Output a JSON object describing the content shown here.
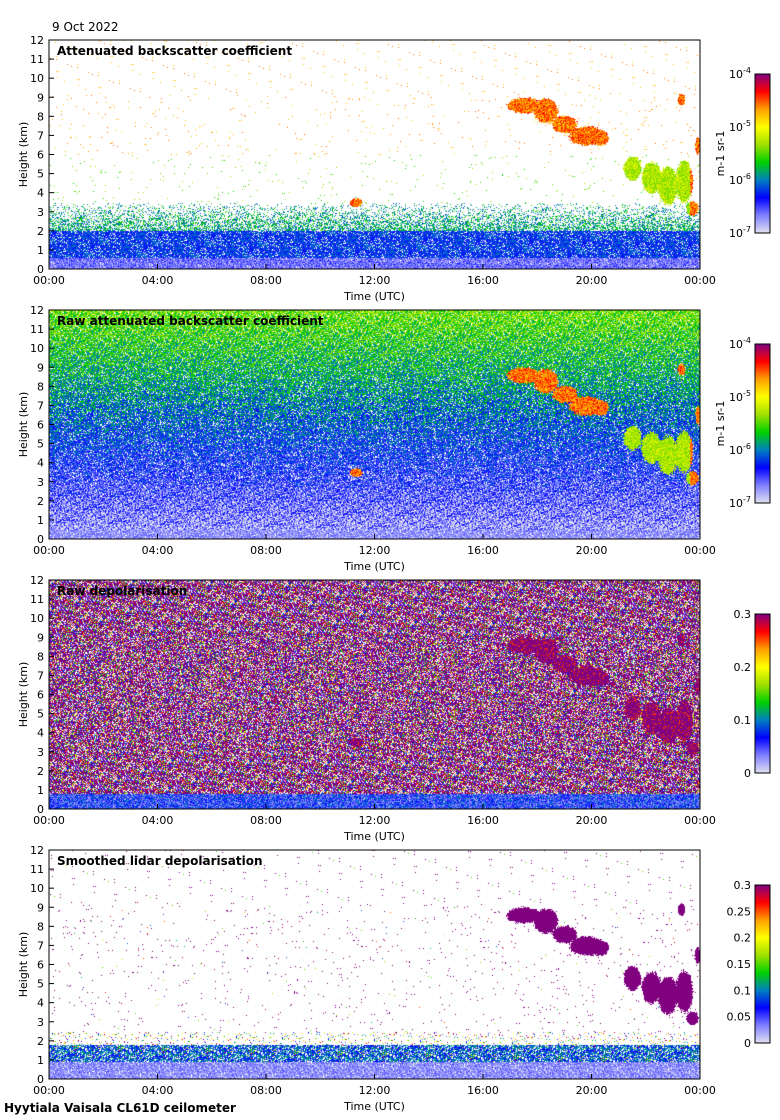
{
  "date": "9 Oct 2022",
  "footer": "Hyytiala Vaisala CL61D ceilometer",
  "chart_data": [
    {
      "type": "heatmap",
      "title": "Attenuated backscatter coefficient",
      "xlabel": "Time (UTC)",
      "ylabel": "Height (km)",
      "xticks": [
        "00:00",
        "04:00",
        "08:00",
        "12:00",
        "16:00",
        "20:00",
        "00:00"
      ],
      "yticks": [
        "0",
        "1",
        "2",
        "3",
        "4",
        "5",
        "6",
        "7",
        "8",
        "9",
        "10",
        "11",
        "12"
      ],
      "xlim": [
        0,
        24
      ],
      "ylim": [
        0,
        12
      ],
      "colorbar": {
        "scale": "log",
        "ticks": [
          "10-7",
          "10-6",
          "10-5",
          "10-4"
        ],
        "tick_base": "10",
        "tick_exp": [
          "-7",
          "-6",
          "-5",
          "-4"
        ],
        "label": "m-1 sr-1",
        "label_parts": [
          "m",
          "-1",
          " sr",
          "-1"
        ],
        "range": [
          1e-07,
          0.0001
        ]
      },
      "kind": "beta"
    },
    {
      "type": "heatmap",
      "title": "Raw attenuated backscatter coefficient",
      "xlabel": "Time (UTC)",
      "ylabel": "Height (km)",
      "xticks": [
        "00:00",
        "04:00",
        "08:00",
        "12:00",
        "16:00",
        "20:00",
        "00:00"
      ],
      "yticks": [
        "0",
        "1",
        "2",
        "3",
        "4",
        "5",
        "6",
        "7",
        "8",
        "9",
        "10",
        "11",
        "12"
      ],
      "xlim": [
        0,
        24
      ],
      "ylim": [
        0,
        12
      ],
      "colorbar": {
        "scale": "log",
        "ticks": [
          "10-7",
          "10-6",
          "10-5",
          "10-4"
        ],
        "tick_base": "10",
        "tick_exp": [
          "-7",
          "-6",
          "-5",
          "-4"
        ],
        "label": "m-1 sr-1",
        "label_parts": [
          "m",
          "-1",
          " sr",
          "-1"
        ],
        "range": [
          1e-07,
          0.0001
        ]
      },
      "kind": "beta_raw"
    },
    {
      "type": "heatmap",
      "title": "Raw depolarisation",
      "xlabel": "Time (UTC)",
      "ylabel": "Height (km)",
      "xticks": [
        "00:00",
        "04:00",
        "08:00",
        "12:00",
        "16:00",
        "20:00",
        "00:00"
      ],
      "yticks": [
        "0",
        "1",
        "2",
        "3",
        "4",
        "5",
        "6",
        "7",
        "8",
        "9",
        "10",
        "11",
        "12"
      ],
      "xlim": [
        0,
        24
      ],
      "ylim": [
        0,
        12
      ],
      "colorbar": {
        "scale": "linear",
        "ticks": [
          "0",
          "0.1",
          "0.2",
          "0.3"
        ],
        "range": [
          0,
          0.3
        ]
      },
      "kind": "depol_raw"
    },
    {
      "type": "heatmap",
      "title": "Smoothed lidar depolarisation",
      "xlabel": "Time (UTC)",
      "ylabel": "Height (km)",
      "xticks": [
        "00:00",
        "04:00",
        "08:00",
        "12:00",
        "16:00",
        "20:00",
        "00:00"
      ],
      "yticks": [
        "0",
        "1",
        "2",
        "3",
        "4",
        "5",
        "6",
        "7",
        "8",
        "9",
        "10",
        "11",
        "12"
      ],
      "xlim": [
        0,
        24
      ],
      "ylim": [
        0,
        12
      ],
      "colorbar": {
        "scale": "linear",
        "ticks": [
          "0",
          "0.05",
          "0.1",
          "0.15",
          "0.2",
          "0.25",
          "0.3"
        ],
        "range": [
          0,
          0.3
        ]
      },
      "kind": "depol"
    }
  ],
  "cloud_features_hours_km": [
    [
      17.5,
      8.6,
      0.7,
      0.45
    ],
    [
      18.3,
      8.3,
      0.5,
      0.7
    ],
    [
      19.0,
      7.6,
      0.5,
      0.5
    ],
    [
      19.8,
      7.0,
      0.7,
      0.55
    ],
    [
      20.3,
      6.9,
      0.35,
      0.45
    ],
    [
      21.5,
      5.3,
      0.35,
      0.7
    ],
    [
      22.2,
      4.8,
      0.4,
      0.9
    ],
    [
      22.8,
      4.4,
      0.4,
      1.1
    ],
    [
      23.4,
      4.6,
      0.35,
      1.2
    ],
    [
      23.7,
      3.2,
      0.25,
      0.4
    ],
    [
      23.3,
      8.9,
      0.15,
      0.35
    ],
    [
      23.9,
      6.5,
      0.1,
      0.5
    ],
    [
      11.3,
      3.5,
      0.25,
      0.25
    ]
  ],
  "colormap": [
    "#e0e0f0",
    "#8080ff",
    "#0000ff",
    "#0080c0",
    "#00d000",
    "#a0e000",
    "#ffff00",
    "#ffa000",
    "#ff0000",
    "#800080"
  ]
}
